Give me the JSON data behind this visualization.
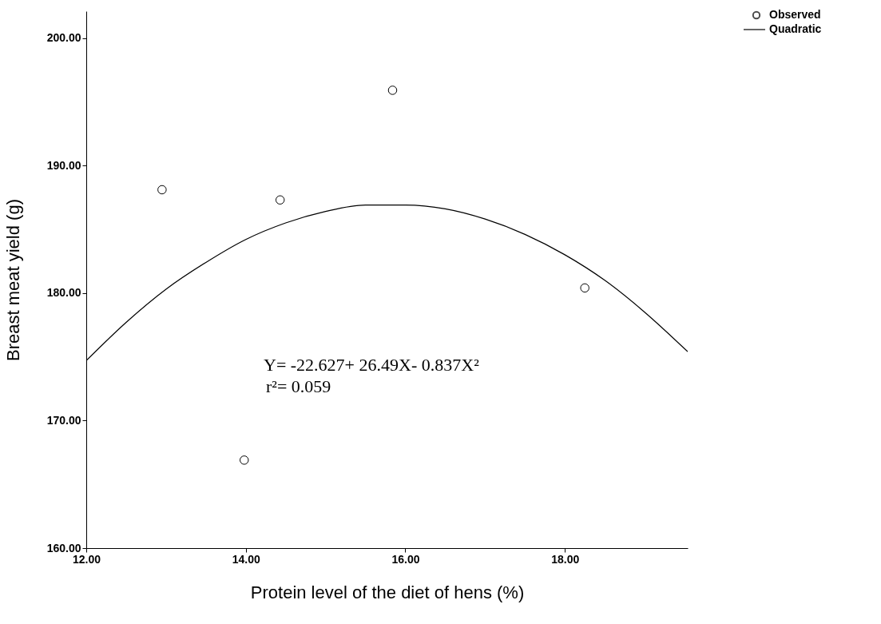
{
  "chart_data": {
    "type": "scatter",
    "xlabel": "Protein level of the diet of hens (%)",
    "ylabel": "Breast meat yield (g)",
    "xlim": [
      12,
      19.54
    ],
    "xticks": [
      {
        "value": 12,
        "label": "12.00"
      },
      {
        "value": 14,
        "label": "14.00"
      },
      {
        "value": 16,
        "label": "16.00"
      },
      {
        "value": 18,
        "label": "18.00"
      }
    ],
    "ylim": [
      160,
      202.1
    ],
    "yticks": [
      {
        "value": 160,
        "label": "160.00"
      },
      {
        "value": 170,
        "label": "170.00"
      },
      {
        "value": 180,
        "label": "180.00"
      },
      {
        "value": 190,
        "label": "190.00"
      },
      {
        "value": 200,
        "label": "200.00"
      }
    ],
    "grid": false,
    "legend": "top right",
    "series": [
      {
        "name": "Observed",
        "color": "#000000",
        "marker": "circle",
        "x": [
          12.95,
          13.98,
          14.43,
          15.84,
          18.25
        ],
        "values": [
          188.1,
          166.9,
          187.3,
          195.9,
          180.4
        ]
      },
      {
        "name": "Quadratic",
        "type": "line",
        "color": "#000000",
        "marker": "none",
        "line_style": "solid",
        "x": [
          12,
          12.5,
          13,
          13.5,
          14,
          14.5,
          15,
          15.5,
          16,
          16.5,
          17,
          17.5,
          18,
          18.5,
          19,
          19.54
        ],
        "values": [
          174.7,
          177.7,
          180.3,
          182.4,
          184.2,
          185.5,
          186.4,
          186.9,
          186.9,
          186.6,
          185.8,
          184.6,
          183.0,
          181.0,
          178.5,
          175.4
        ]
      }
    ],
    "annotations": [
      "Y= -22.627+ 26.49X- 0.837X²",
      "r²= 0.059"
    ]
  }
}
